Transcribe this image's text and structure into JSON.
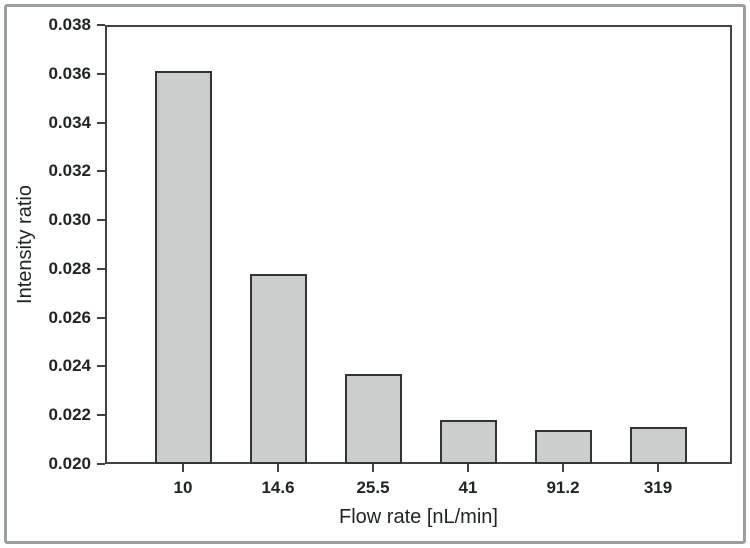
{
  "figure": {
    "background_color": "#ffffff",
    "outer_border_color": "#9aa0a0"
  },
  "chart_data": {
    "type": "bar",
    "title": "",
    "xlabel": "Flow rate [nL/min]",
    "ylabel": "Intensity ratio",
    "categories": [
      "10",
      "14.6",
      "25.5",
      "41",
      "91.2",
      "319"
    ],
    "values": [
      0.0361,
      0.0278,
      0.0237,
      0.0218,
      0.0214,
      0.0215
    ],
    "ylim": [
      0.02,
      0.038
    ],
    "yticks": [
      0.02,
      0.022,
      0.024,
      0.026,
      0.028,
      0.03,
      0.032,
      0.034,
      0.036,
      0.038
    ],
    "ytick_labels": [
      "0.020",
      "0.022",
      "0.024",
      "0.026",
      "0.028",
      "0.030",
      "0.032",
      "0.034",
      "0.036",
      "0.038"
    ],
    "grid": false,
    "legend_position": "none",
    "bar_fill_color": "#cbcecd",
    "bar_edge_color": "#303535",
    "axis_color": "#3e4444",
    "text_color": "#1f2424"
  }
}
